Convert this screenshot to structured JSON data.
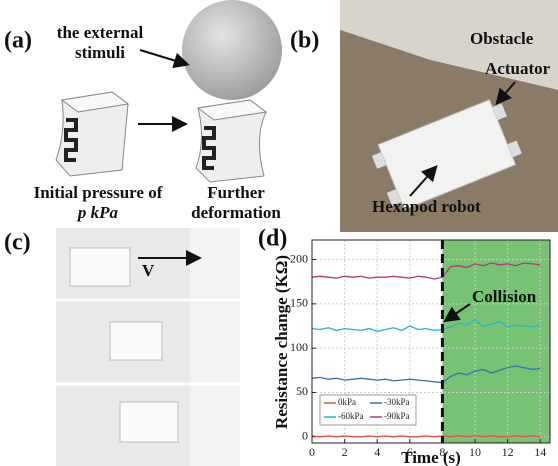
{
  "panel_a": {
    "letter": "(a)",
    "stimuli": [
      "the external",
      "stimuli"
    ],
    "left_caption": [
      "Initial pressure of",
      "p kPa"
    ],
    "right_caption": [
      "Further",
      "deformation"
    ]
  },
  "panel_b": {
    "letter": "(b)",
    "obstacle": "Obstacle",
    "actuator": "Actuator",
    "robot": "Hexapod robot"
  },
  "panel_c": {
    "letter": "(c)",
    "velocity": "V"
  },
  "chart_data": {
    "type": "line",
    "letter": "(d)",
    "ylabel": "Resistance change (KΩ)",
    "xlabel": "Time (s)",
    "annotation": "Collision",
    "collision_x": 8,
    "xlim": [
      0,
      14.6
    ],
    "ylim": [
      -7,
      222
    ],
    "xticks": [
      0,
      2,
      4,
      6,
      8,
      10,
      12,
      14
    ],
    "yticks": [
      0,
      50,
      100,
      150,
      200
    ],
    "grid": true,
    "legend": "lower left",
    "x": [
      0,
      0.5,
      1,
      1.5,
      2,
      2.5,
      3,
      3.5,
      4,
      4.5,
      5,
      5.5,
      6,
      6.5,
      7,
      7.5,
      8,
      8.5,
      9,
      9.5,
      10,
      10.5,
      11,
      11.5,
      12,
      12.5,
      13,
      13.5,
      14
    ],
    "series": [
      {
        "name": "0kPa",
        "color": "#d9534f",
        "values": [
          1,
          0,
          1,
          0,
          1,
          0,
          0,
          1,
          0,
          1,
          0,
          1,
          0,
          0,
          1,
          0,
          1,
          0,
          1,
          0,
          1,
          0,
          1,
          0,
          0,
          1,
          0,
          1,
          0
        ]
      },
      {
        "name": "-30kPa",
        "color": "#3a6fb0",
        "values": [
          66,
          67,
          65,
          66,
          64,
          65,
          66,
          65,
          64,
          65,
          63,
          64,
          65,
          64,
          63,
          62,
          61,
          68,
          72,
          70,
          74,
          76,
          72,
          75,
          78,
          80,
          78,
          76,
          77
        ]
      },
      {
        "name": "-60kPa",
        "color": "#2bb3c0",
        "values": [
          122,
          121,
          123,
          120,
          122,
          121,
          120,
          122,
          119,
          121,
          123,
          120,
          125,
          121,
          122,
          120,
          121,
          124,
          128,
          126,
          132,
          125,
          127,
          130,
          124,
          126,
          125,
          124,
          126
        ]
      },
      {
        "name": "-90kPa",
        "color": "#b0397a",
        "values": [
          180,
          181,
          180,
          179,
          181,
          180,
          181,
          179,
          180,
          180,
          181,
          180,
          179,
          181,
          180,
          178,
          180,
          192,
          193,
          191,
          195,
          193,
          196,
          194,
          195,
          193,
          196,
          195,
          194
        ]
      }
    ]
  }
}
